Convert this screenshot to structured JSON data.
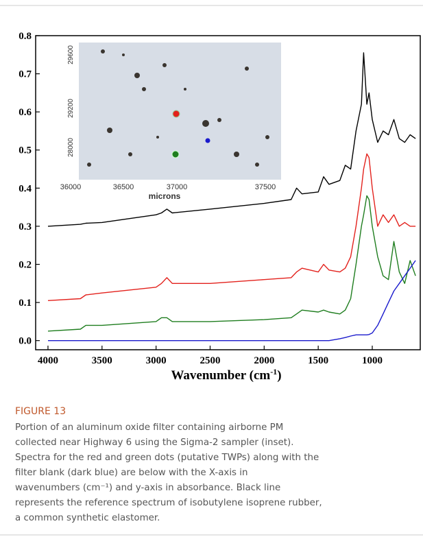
{
  "chart_data": {
    "type": "line",
    "x": [
      4000,
      3700,
      3650,
      3500,
      3000,
      2950,
      2900,
      2850,
      2500,
      2000,
      1750,
      1700,
      1650,
      1500,
      1450,
      1400,
      1300,
      1250,
      1200,
      1150,
      1100,
      1080,
      1050,
      1030,
      1000,
      950,
      900,
      850,
      800,
      750,
      700,
      650,
      600
    ],
    "series": [
      {
        "color": "#000000",
        "values": [
          0.3,
          0.305,
          0.308,
          0.31,
          0.33,
          0.335,
          0.345,
          0.335,
          0.345,
          0.36,
          0.37,
          0.4,
          0.385,
          0.39,
          0.43,
          0.41,
          0.42,
          0.46,
          0.45,
          0.55,
          0.62,
          0.755,
          0.62,
          0.65,
          0.58,
          0.52,
          0.55,
          0.54,
          0.58,
          0.53,
          0.52,
          0.54,
          0.53
        ]
      },
      {
        "color": "#e3211c",
        "values": [
          0.105,
          0.11,
          0.12,
          0.125,
          0.14,
          0.15,
          0.165,
          0.15,
          0.15,
          0.16,
          0.165,
          0.18,
          0.19,
          0.18,
          0.2,
          0.185,
          0.18,
          0.19,
          0.22,
          0.3,
          0.4,
          0.45,
          0.49,
          0.48,
          0.4,
          0.3,
          0.33,
          0.31,
          0.33,
          0.3,
          0.31,
          0.3,
          0.3
        ]
      },
      {
        "color": "#1e7d1e",
        "values": [
          0.025,
          0.03,
          0.04,
          0.04,
          0.05,
          0.06,
          0.06,
          0.05,
          0.05,
          0.055,
          0.06,
          0.07,
          0.08,
          0.075,
          0.08,
          0.075,
          0.07,
          0.08,
          0.11,
          0.2,
          0.3,
          0.33,
          0.38,
          0.37,
          0.3,
          0.22,
          0.17,
          0.16,
          0.26,
          0.18,
          0.15,
          0.21,
          0.17
        ]
      },
      {
        "color": "#1a1acc",
        "values": [
          0,
          0,
          0,
          0,
          0,
          0,
          0,
          0,
          0,
          0,
          0,
          0,
          0,
          0,
          0,
          0,
          0.005,
          0.008,
          0.012,
          0.015,
          0.015,
          0.015,
          0.015,
          0.016,
          0.02,
          0.04,
          0.07,
          0.1,
          0.13,
          0.15,
          0.17,
          0.19,
          0.21
        ]
      }
    ],
    "xlim": [
      4114,
      556
    ],
    "xticks": [
      4000,
      3500,
      3000,
      2500,
      2000,
      1500,
      1000
    ],
    "ylim": [
      -0.024,
      0.8
    ],
    "yticks": [
      {
        "value": 0,
        "label": "0.0"
      },
      0.1,
      0.2,
      0.3,
      0.4,
      0.5,
      0.6,
      0.7,
      0.8
    ],
    "xlabel": "Wavenumber (cm",
    "xlabel_sup": "-1",
    "xlabel_end": ")",
    "inset": {
      "xticks": [
        36000,
        36500,
        37000,
        37500
      ],
      "yticks": [
        29600,
        29200,
        28000
      ],
      "xlabel": "microns"
    }
  },
  "caption": {
    "label": "FIGURE 13",
    "lines": [
      "Portion of an aluminum oxide filter containing airborne PM",
      "collected near Highway 6 using the Sigma-2 sampler (inset).",
      "Spectra for the red and green dots (putative TWPs) along with the",
      "filter blank (dark blue) are below with the X-axis in",
      "wavenumbers (cm⁻¹) and y-axis in absorbance. Black line",
      "represents the reference spectrum of isobutylene isoprene rubber,",
      "a common synthetic elastomer."
    ]
  }
}
